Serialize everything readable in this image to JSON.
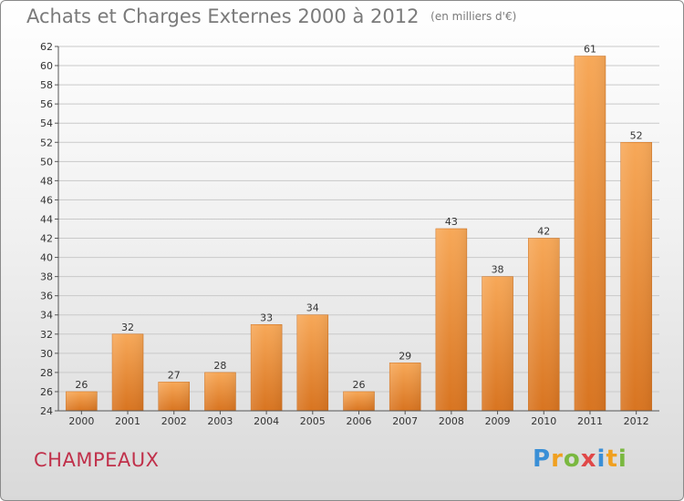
{
  "title": "Achats et Charges Externes 2000 à 2012",
  "unit": "(en milliers d'€)",
  "commune": "CHAMPEAUX",
  "logo": {
    "text": "Proxiti",
    "letters": [
      {
        "ch": "P",
        "color": "#3a8fd6"
      },
      {
        "ch": "r",
        "color": "#f0a020"
      },
      {
        "ch": "o",
        "color": "#7ab840"
      },
      {
        "ch": "x",
        "color": "#e04848"
      },
      {
        "ch": "i",
        "color": "#3a8fd6"
      },
      {
        "ch": "t",
        "color": "#f0a020"
      },
      {
        "ch": "i",
        "color": "#7ab840"
      }
    ]
  },
  "colors": {
    "bar_top": "#f7a858",
    "bar_bottom": "#d87420",
    "axis": "#555555",
    "grid": "#c9c9c9",
    "commune": "#c0304a"
  },
  "chart_data": {
    "type": "bar",
    "categories": [
      "2000",
      "2001",
      "2002",
      "2003",
      "2004",
      "2005",
      "2006",
      "2007",
      "2008",
      "2009",
      "2010",
      "2011",
      "2012"
    ],
    "values": [
      26,
      32,
      27,
      28,
      33,
      34,
      26,
      29,
      43,
      38,
      42,
      61,
      52
    ],
    "ylim": [
      24,
      62
    ],
    "yticks": [
      24,
      26,
      28,
      30,
      32,
      34,
      36,
      38,
      40,
      42,
      44,
      46,
      48,
      50,
      52,
      54,
      56,
      58,
      60,
      62
    ],
    "grid": true,
    "data_labels": true
  }
}
